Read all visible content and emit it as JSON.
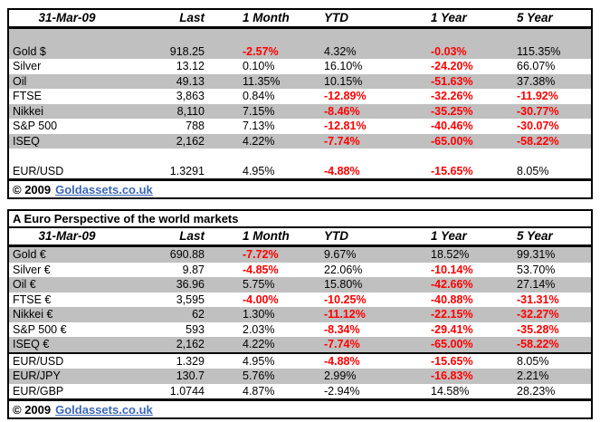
{
  "colors": {
    "negative": "#ff0000",
    "stripe": "#c0c0c0",
    "link": "#3a66b8",
    "border": "#000000"
  },
  "usd_table": {
    "columns": {
      "date": "31-Mar-09",
      "last": "Last",
      "m1": "1 Month",
      "ytd": "YTD",
      "y1": "1 Year",
      "y5": "5 Year"
    },
    "rows_main": [
      {
        "label": "Gold $",
        "values": [
          "918.25",
          "-2.57%",
          "4.32%",
          "-0.03%",
          "115.35%"
        ],
        "neg": [
          false,
          true,
          false,
          true,
          false
        ]
      },
      {
        "label": "Silver",
        "values": [
          "13.12",
          "0.10%",
          "16.10%",
          "-24.20%",
          "66.07%"
        ],
        "neg": [
          false,
          false,
          false,
          true,
          false
        ]
      },
      {
        "label": "Oil",
        "values": [
          "49.13",
          "11.35%",
          "10.15%",
          "-51.63%",
          "37.38%"
        ],
        "neg": [
          false,
          false,
          false,
          true,
          false
        ]
      },
      {
        "label": "FTSE",
        "values": [
          "3,863",
          "0.84%",
          "-12.89%",
          "-32.26%",
          "-11.92%"
        ],
        "neg": [
          false,
          false,
          true,
          true,
          true
        ]
      },
      {
        "label": "Nikkei",
        "values": [
          "8,110",
          "7.15%",
          "-8.46%",
          "-35.25%",
          "-30.77%"
        ],
        "neg": [
          false,
          false,
          true,
          true,
          true
        ]
      },
      {
        "label": "S&P 500",
        "values": [
          "788",
          "7.13%",
          "-12.81%",
          "-40.46%",
          "-30.07%"
        ],
        "neg": [
          false,
          false,
          true,
          true,
          true
        ]
      },
      {
        "label": "ISEQ",
        "values": [
          "2,162",
          "4.22%",
          "-7.74%",
          "-65.00%",
          "-58.22%"
        ],
        "neg": [
          false,
          false,
          true,
          true,
          true
        ]
      }
    ],
    "rows_fx": [
      {
        "label": "EUR/USD",
        "values": [
          "1.3291",
          "4.95%",
          "-4.88%",
          "-15.65%",
          "8.05%"
        ],
        "neg": [
          false,
          false,
          true,
          true,
          false
        ]
      }
    ],
    "footer": {
      "copyright": "© 2009",
      "link": "Goldassets.co.uk"
    }
  },
  "euro_table": {
    "title": "A Euro Perspective of the world markets",
    "columns": {
      "date": "31-Mar-09",
      "last": "Last",
      "m1": "1 Month",
      "ytd": "YTD",
      "y1": "1 Year",
      "y5": "5 Year"
    },
    "rows_main": [
      {
        "label": "Gold €",
        "values": [
          "690.88",
          "-7.72%",
          "9.67%",
          "18.52%",
          "99.31%"
        ],
        "neg": [
          false,
          true,
          false,
          false,
          false
        ]
      },
      {
        "label": "Silver €",
        "values": [
          "9.87",
          "-4.85%",
          "22.06%",
          "-10.14%",
          "53.70%"
        ],
        "neg": [
          false,
          true,
          false,
          true,
          false
        ]
      },
      {
        "label": "Oil €",
        "values": [
          "36.96",
          "5.75%",
          "15.80%",
          "-42.66%",
          "27.14%"
        ],
        "neg": [
          false,
          false,
          false,
          true,
          false
        ]
      },
      {
        "label": "FTSE €",
        "values": [
          "3,595",
          "-4.00%",
          "-10.25%",
          "-40.88%",
          "-31.31%"
        ],
        "neg": [
          false,
          true,
          true,
          true,
          true
        ]
      },
      {
        "label": "Nikkei €",
        "values": [
          "62",
          "1.30%",
          "-11.12%",
          "-22.15%",
          "-32.27%"
        ],
        "neg": [
          false,
          false,
          true,
          true,
          true
        ]
      },
      {
        "label": "S&P 500 €",
        "values": [
          "593",
          "2.03%",
          "-8.34%",
          "-29.41%",
          "-35.28%"
        ],
        "neg": [
          false,
          false,
          true,
          true,
          true
        ]
      },
      {
        "label": "ISEQ €",
        "values": [
          "2,162",
          "4.22%",
          "-7.74%",
          "-65.00%",
          "-58.22%"
        ],
        "neg": [
          false,
          false,
          true,
          true,
          true
        ]
      }
    ],
    "rows_fx": [
      {
        "label": "EUR/USD",
        "values": [
          "1.329",
          "4.95%",
          "-4.88%",
          "-15.65%",
          "8.05%"
        ],
        "neg": [
          false,
          false,
          true,
          true,
          false
        ]
      },
      {
        "label": "EUR/JPY",
        "values": [
          "130.7",
          "5.76%",
          "2.99%",
          "-16.83%",
          "2.21%"
        ],
        "neg": [
          false,
          false,
          false,
          true,
          false
        ]
      },
      {
        "label": "EUR/GBP",
        "values": [
          "1.0744",
          "4.87%",
          "-2.94%",
          "14.58%",
          "28.23%"
        ],
        "neg": [
          false,
          false,
          false,
          false,
          false
        ]
      }
    ],
    "footer": {
      "copyright": "© 2009",
      "link": "Goldassets.co.uk"
    }
  }
}
